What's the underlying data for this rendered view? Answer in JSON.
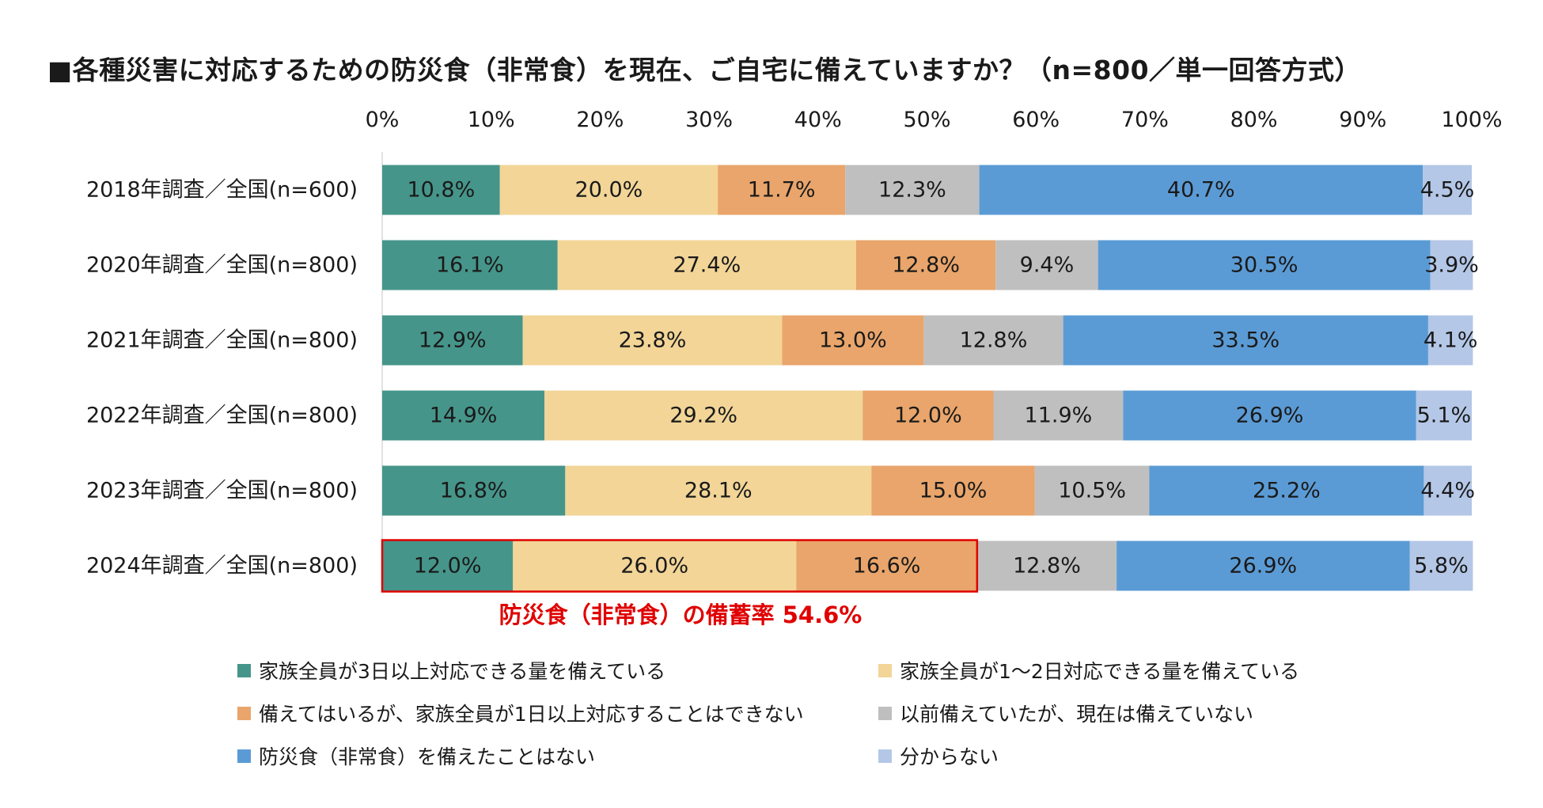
{
  "title": "■各種災害に対応するための防災食（非常食）を現在、ご自宅に備えていますか？（n=800／単一回答方式）",
  "chart_data": {
    "type": "bar",
    "orientation": "horizontal",
    "stacked": true,
    "categories": [
      "2018年調査／全国(n=600)",
      "2020年調査／全国(n=800)",
      "2021年調査／全国(n=800)",
      "2022年調査／全国(n=800)",
      "2023年調査／全国(n=800)",
      "2024年調査／全国(n=800)"
    ],
    "series": [
      {
        "name": "家族全員が3日以上対応できる量を備えている",
        "color": "#46958a",
        "values": [
          10.8,
          16.1,
          12.9,
          14.9,
          16.8,
          12.0
        ]
      },
      {
        "name": "家族全員が1～2日対応できる量を備えている",
        "color": "#f2d597",
        "values": [
          20.0,
          27.4,
          23.8,
          29.2,
          28.1,
          26.0
        ]
      },
      {
        "name": "備えてはいるが、家族全員が1日以上対応することはできない",
        "color": "#e9a56b",
        "values": [
          11.7,
          12.8,
          13.0,
          12.0,
          15.0,
          16.6
        ]
      },
      {
        "name": "以前備えていたが、現在は備えていない",
        "color": "#bfbfbf",
        "values": [
          12.3,
          9.4,
          12.8,
          11.9,
          10.5,
          12.8
        ]
      },
      {
        "name": "防災食（非常食）を備えたことはない",
        "color": "#5b9bd5",
        "values": [
          40.7,
          30.5,
          33.5,
          26.9,
          25.2,
          26.9
        ]
      },
      {
        "name": "分からない",
        "color": "#b4c7e7",
        "values": [
          4.5,
          3.9,
          4.1,
          5.1,
          4.4,
          5.8
        ]
      }
    ],
    "value_format": "percent_1dp",
    "xlim": [
      0,
      100
    ],
    "xticks": [
      "0%",
      "10%",
      "20%",
      "30%",
      "40%",
      "50%",
      "60%",
      "70%",
      "80%",
      "90%",
      "100%"
    ],
    "xaxis_position": "top",
    "grid": false,
    "legend_position": "bottom",
    "annotation": {
      "text": "防災食（非常食）の備蓄率 54.6%",
      "highlight_category": "2024年調査／全国(n=800)",
      "highlight_series_count": 3,
      "color": "#e00000"
    }
  }
}
